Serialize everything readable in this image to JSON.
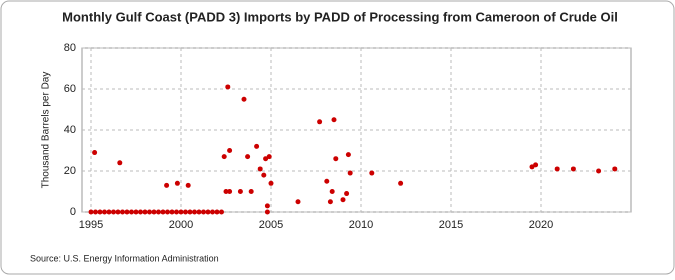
{
  "chart_data": {
    "type": "scatter",
    "title": "Monthly Gulf Coast (PADD 3) Imports by PADD of Processing from Cameroon of Crude Oil",
    "y_label": "Thousand Barrels per Day",
    "source": "Source: U.S. Energy Information Administration",
    "color": "#cc0000",
    "xlim": [
      1994.5,
      2025
    ],
    "xticks": [
      1995,
      2000,
      2005,
      2010,
      2015,
      2020
    ],
    "ylim": [
      0,
      80
    ],
    "yticks": [
      0,
      20,
      40,
      60,
      80
    ],
    "grid": true,
    "x": [
      1995,
      1995.25,
      1995.5,
      1995.75,
      1996,
      1996.25,
      1996.5,
      1996.75,
      1997,
      1997.25,
      1997.5,
      1997.75,
      1998,
      1998.25,
      1998.5,
      1998.75,
      1999,
      1999.25,
      1999.5,
      1999.75,
      2000,
      2000.25,
      2000.5,
      2000.75,
      2001,
      2001.25,
      2001.5,
      2001.75,
      2002,
      2002.25,
      2004.8,
      1995.2,
      1996.6,
      1999.2,
      1999.8,
      2000.4,
      2002.4,
      2002.6,
      2002.5,
      2002.7,
      2002.7,
      2003.3,
      2003.5,
      2003.7,
      2003.9,
      2004.2,
      2004.4,
      2004.6,
      2004.7,
      2004.8,
      2004.9,
      2005.0,
      2006.5,
      2007.7,
      2008.1,
      2008.3,
      2008.4,
      2008.5,
      2008.6,
      2009.0,
      2009.2,
      2009.3,
      2009.4,
      2010.6,
      2012.2,
      2019.5,
      2019.7,
      2020.9,
      2021.8,
      2023.2,
      2024.1
    ],
    "values": [
      0,
      0,
      0,
      0,
      0,
      0,
      0,
      0,
      0,
      0,
      0,
      0,
      0,
      0,
      0,
      0,
      0,
      0,
      0,
      0,
      0,
      0,
      0,
      0,
      0,
      0,
      0,
      0,
      0,
      0,
      0,
      29,
      24,
      13,
      14,
      13,
      27,
      61,
      10,
      10,
      30,
      10,
      55,
      27,
      10,
      32,
      21,
      18,
      26,
      3,
      27,
      14,
      5,
      44,
      15,
      5,
      10,
      45,
      26,
      6,
      9,
      28,
      19,
      19,
      14,
      22,
      23,
      21,
      21,
      20,
      21
    ]
  }
}
